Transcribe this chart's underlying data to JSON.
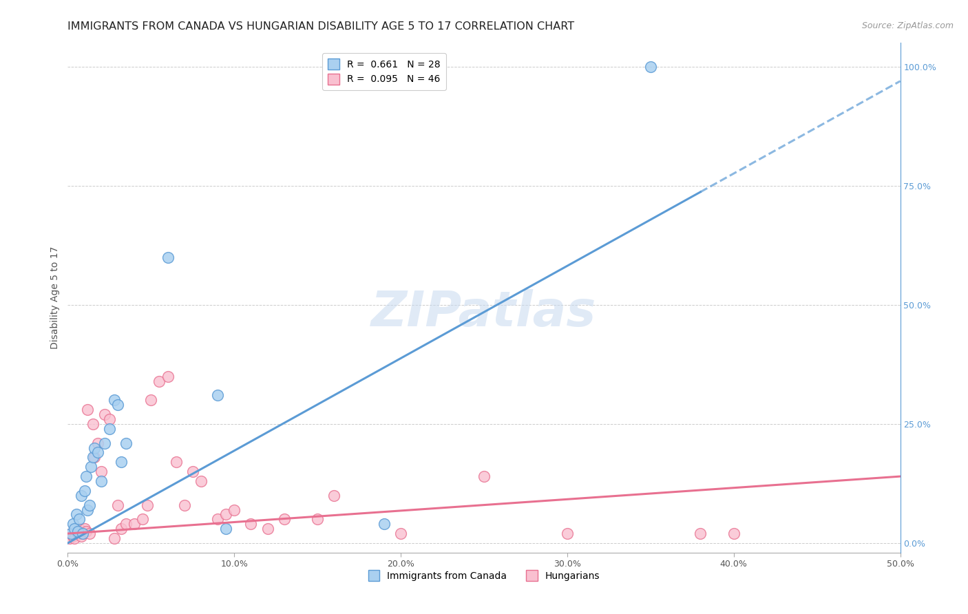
{
  "title": "IMMIGRANTS FROM CANADA VS HUNGARIAN DISABILITY AGE 5 TO 17 CORRELATION CHART",
  "source": "Source: ZipAtlas.com",
  "ylabel": "Disability Age 5 to 17",
  "xlim": [
    0.0,
    50.0
  ],
  "ylim": [
    -2.0,
    105.0
  ],
  "xticks": [
    0.0,
    10.0,
    20.0,
    30.0,
    40.0,
    50.0
  ],
  "xticklabels": [
    "0.0%",
    "10.0%",
    "20.0%",
    "30.0%",
    "40.0%",
    "50.0%"
  ],
  "yticks_right": [
    0.0,
    25.0,
    50.0,
    75.0,
    100.0
  ],
  "yticklabels_right": [
    "0.0%",
    "25.0%",
    "50.0%",
    "75.0%",
    "100.0%"
  ],
  "watermark": "ZIPatlas",
  "legend_top": [
    {
      "label": "R =  0.661   N = 28",
      "face": "#aad0f0",
      "edge": "#5b9bd5"
    },
    {
      "label": "R =  0.095   N = 46",
      "face": "#f9c0d0",
      "edge": "#e87090"
    }
  ],
  "legend_bottom": [
    {
      "label": "Immigrants from Canada",
      "face": "#aad0f0",
      "edge": "#5b9bd5"
    },
    {
      "label": "Hungarians",
      "face": "#f9c0d0",
      "edge": "#e87090"
    }
  ],
  "blue_scatter": [
    [
      0.2,
      2.0
    ],
    [
      0.3,
      4.0
    ],
    [
      0.4,
      3.0
    ],
    [
      0.5,
      6.0
    ],
    [
      0.6,
      2.5
    ],
    [
      0.7,
      5.0
    ],
    [
      0.8,
      10.0
    ],
    [
      0.9,
      2.0
    ],
    [
      1.0,
      11.0
    ],
    [
      1.1,
      14.0
    ],
    [
      1.2,
      7.0
    ],
    [
      1.3,
      8.0
    ],
    [
      1.4,
      16.0
    ],
    [
      1.5,
      18.0
    ],
    [
      1.6,
      20.0
    ],
    [
      1.8,
      19.0
    ],
    [
      2.0,
      13.0
    ],
    [
      2.2,
      21.0
    ],
    [
      2.5,
      24.0
    ],
    [
      2.8,
      30.0
    ],
    [
      3.0,
      29.0
    ],
    [
      3.2,
      17.0
    ],
    [
      3.5,
      21.0
    ],
    [
      6.0,
      60.0
    ],
    [
      9.0,
      31.0
    ],
    [
      9.5,
      3.0
    ],
    [
      19.0,
      4.0
    ],
    [
      35.0,
      100.0
    ]
  ],
  "pink_scatter": [
    [
      0.1,
      1.0
    ],
    [
      0.2,
      2.0
    ],
    [
      0.3,
      1.5
    ],
    [
      0.4,
      1.0
    ],
    [
      0.5,
      2.5
    ],
    [
      0.6,
      2.0
    ],
    [
      0.7,
      3.0
    ],
    [
      0.8,
      1.5
    ],
    [
      0.9,
      2.0
    ],
    [
      1.0,
      3.0
    ],
    [
      1.1,
      2.5
    ],
    [
      1.2,
      28.0
    ],
    [
      1.3,
      2.0
    ],
    [
      1.5,
      25.0
    ],
    [
      1.6,
      18.0
    ],
    [
      1.8,
      21.0
    ],
    [
      2.0,
      15.0
    ],
    [
      2.2,
      27.0
    ],
    [
      2.5,
      26.0
    ],
    [
      2.8,
      1.0
    ],
    [
      3.0,
      8.0
    ],
    [
      3.2,
      3.0
    ],
    [
      3.5,
      4.0
    ],
    [
      4.0,
      4.0
    ],
    [
      4.5,
      5.0
    ],
    [
      4.8,
      8.0
    ],
    [
      5.0,
      30.0
    ],
    [
      5.5,
      34.0
    ],
    [
      6.0,
      35.0
    ],
    [
      6.5,
      17.0
    ],
    [
      7.0,
      8.0
    ],
    [
      7.5,
      15.0
    ],
    [
      8.0,
      13.0
    ],
    [
      9.0,
      5.0
    ],
    [
      9.5,
      6.0
    ],
    [
      10.0,
      7.0
    ],
    [
      11.0,
      4.0
    ],
    [
      12.0,
      3.0
    ],
    [
      13.0,
      5.0
    ],
    [
      15.0,
      5.0
    ],
    [
      16.0,
      10.0
    ],
    [
      20.0,
      2.0
    ],
    [
      25.0,
      14.0
    ],
    [
      30.0,
      2.0
    ],
    [
      38.0,
      2.0
    ],
    [
      40.0,
      2.0
    ]
  ],
  "blue_line": {
    "x": [
      0.0,
      38.0,
      50.0
    ],
    "y": [
      0.0,
      73.0,
      97.0
    ],
    "solid_end": 38.0
  },
  "pink_line": {
    "x": [
      0.0,
      50.0
    ],
    "y": [
      2.0,
      14.0
    ]
  },
  "blue_color": "#5b9bd5",
  "pink_color": "#e87090",
  "blue_face": "#aad0f0",
  "pink_face": "#f9c0d0",
  "grid_color": "#cccccc",
  "title_fontsize": 11.5,
  "source_fontsize": 9,
  "axis_label_fontsize": 10,
  "tick_fontsize": 9,
  "legend_fontsize": 10,
  "watermark_fontsize": 52,
  "watermark_color": "#c8daf0",
  "watermark_alpha": 0.55
}
